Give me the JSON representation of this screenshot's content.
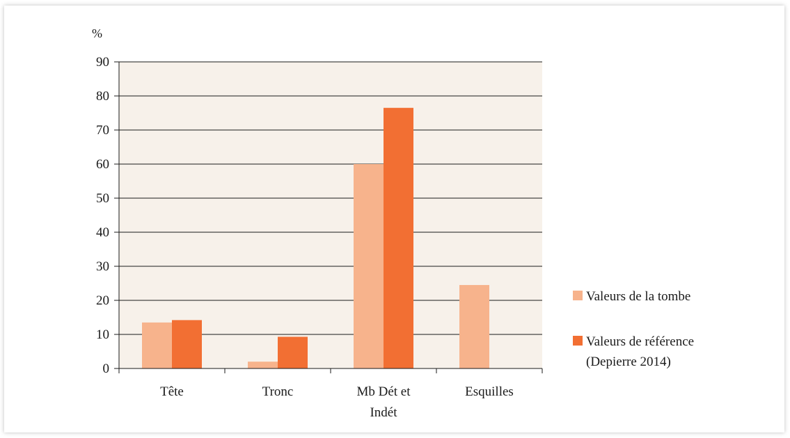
{
  "chart_data": {
    "type": "bar",
    "ylabel": "%",
    "ylim": [
      0,
      90
    ],
    "yticks": [
      0,
      10,
      20,
      30,
      40,
      50,
      60,
      70,
      80,
      90
    ],
    "grid": true,
    "legend_position": "right",
    "categories": [
      [
        "Tête"
      ],
      [
        "Tronc"
      ],
      [
        "Mb Dét et",
        "Indét"
      ],
      [
        "Esquilles"
      ]
    ],
    "series": [
      {
        "name": "Valeurs de la tombe",
        "legend_lines": [
          "Valeurs de la tombe"
        ],
        "color": "#f7b38c",
        "values": [
          13.5,
          2,
          60,
          24.5
        ]
      },
      {
        "name": "Valeurs de référence (Depierre 2014)",
        "legend_lines": [
          "Valeurs de référence",
          "(Depierre 2014)"
        ],
        "color": "#f26f33",
        "values": [
          14.2,
          9.3,
          76.5,
          0
        ]
      }
    ],
    "plot_background": "#f7f1ea"
  }
}
